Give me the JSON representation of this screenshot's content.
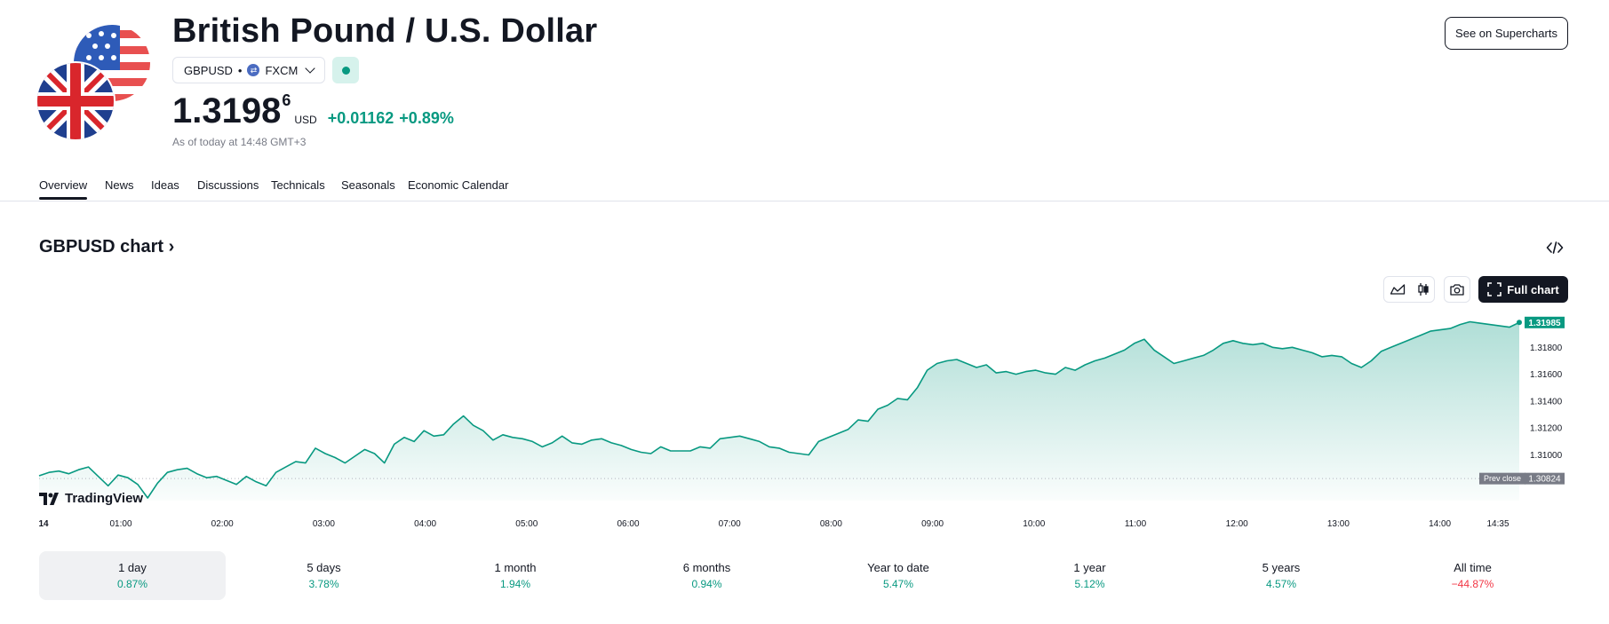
{
  "header": {
    "title": "British Pound / U.S. Dollar",
    "symbol": "GBPUSD",
    "separator": "•",
    "exchange": "FXCM",
    "price_main": "1.3198",
    "price_sup": "6",
    "currency": "USD",
    "change": "+0.01162",
    "change_pct": "+0.89%",
    "as_of": "As of today at 14:48 GMT+3",
    "supercharts_label": "See on Supercharts"
  },
  "tabs": [
    "Overview",
    "News",
    "Ideas",
    "Discussions",
    "Technicals",
    "Seasonals",
    "Economic Calendar"
  ],
  "chart_section": {
    "heading": "GBPUSD chart",
    "full_chart_label": "Full chart",
    "brand": "TradingView"
  },
  "chart_data": {
    "type": "area",
    "x_ticks": [
      "14",
      "01:00",
      "02:00",
      "03:00",
      "04:00",
      "05:00",
      "06:00",
      "07:00",
      "08:00",
      "09:00",
      "10:00",
      "11:00",
      "12:00",
      "13:00",
      "14:00",
      "14:35"
    ],
    "y_ticks": [
      "1.31800",
      "1.31600",
      "1.31400",
      "1.31200",
      "1.31000"
    ],
    "ylim": [
      1.3066,
      1.3202
    ],
    "last_price_label": "1.31985",
    "prev_close_label": "Prev close",
    "prev_close_value": "1.30824",
    "series": [
      {
        "values": [
          1.30845,
          1.3087,
          1.3088,
          1.3086,
          1.3089,
          1.3091,
          1.3084,
          1.3077,
          1.3085,
          1.3083,
          1.3078,
          1.3068,
          1.3079,
          1.3087,
          1.3089,
          1.309,
          1.3086,
          1.3083,
          1.3084,
          1.3081,
          1.3078,
          1.3084,
          1.308,
          1.3077,
          1.3087,
          1.3091,
          1.3095,
          1.3094,
          1.3105,
          1.3101,
          1.3098,
          1.3094,
          1.3099,
          1.3104,
          1.3101,
          1.3094,
          1.3108,
          1.3113,
          1.311,
          1.3118,
          1.3114,
          1.3115,
          1.3123,
          1.3129,
          1.3122,
          1.3118,
          1.3111,
          1.3115,
          1.3113,
          1.3112,
          1.311,
          1.3106,
          1.3109,
          1.3114,
          1.3109,
          1.3108,
          1.3111,
          1.3112,
          1.3109,
          1.3107,
          1.3104,
          1.3102,
          1.3101,
          1.3106,
          1.3103,
          1.3103,
          1.3103,
          1.3106,
          1.3105,
          1.3112,
          1.3113,
          1.3114,
          1.3112,
          1.311,
          1.3106,
          1.3105,
          1.3102,
          1.3101,
          1.31,
          1.311,
          1.3113,
          1.3116,
          1.3119,
          1.3126,
          1.3125,
          1.3134,
          1.3137,
          1.3142,
          1.3141,
          1.315,
          1.3163,
          1.3168,
          1.317,
          1.3171,
          1.3168,
          1.3165,
          1.3167,
          1.3161,
          1.3162,
          1.316,
          1.3162,
          1.3163,
          1.3161,
          1.316,
          1.3165,
          1.3163,
          1.3167,
          1.317,
          1.3172,
          1.3175,
          1.3178,
          1.3183,
          1.3186,
          1.3178,
          1.3173,
          1.3168,
          1.317,
          1.3172,
          1.3174,
          1.3178,
          1.3183,
          1.3185,
          1.3183,
          1.3182,
          1.3183,
          1.318,
          1.3179,
          1.318,
          1.3178,
          1.3176,
          1.3173,
          1.3174,
          1.3173,
          1.3168,
          1.3165,
          1.317,
          1.3177,
          1.318,
          1.3183,
          1.3186,
          1.3189,
          1.3192,
          1.3193,
          1.3194,
          1.3197,
          1.3199,
          1.3198,
          1.3197,
          1.3196,
          1.3195,
          1.31985
        ]
      }
    ]
  },
  "periods": [
    {
      "label": "1 day",
      "value": "0.87%",
      "trend": "pos"
    },
    {
      "label": "5 days",
      "value": "3.78%",
      "trend": "pos"
    },
    {
      "label": "1 month",
      "value": "1.94%",
      "trend": "pos"
    },
    {
      "label": "6 months",
      "value": "0.94%",
      "trend": "pos"
    },
    {
      "label": "Year to date",
      "value": "5.47%",
      "trend": "pos"
    },
    {
      "label": "1 year",
      "value": "5.12%",
      "trend": "pos"
    },
    {
      "label": "5 years",
      "value": "4.57%",
      "trend": "pos"
    },
    {
      "label": "All time",
      "value": "−44.87%",
      "trend": "neg"
    }
  ],
  "colors": {
    "accent_green": "#089981",
    "negative_red": "#f23645",
    "text_primary": "#131722",
    "text_secondary": "#787b86"
  }
}
